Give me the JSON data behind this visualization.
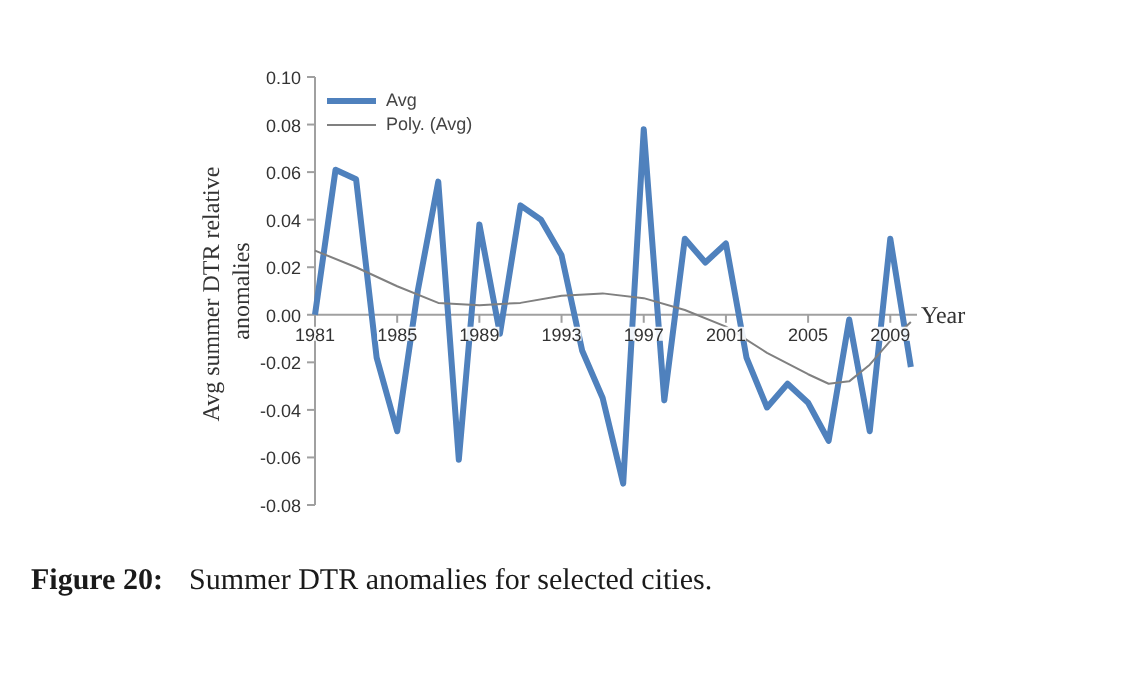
{
  "chart_data": {
    "type": "line",
    "xlabel": "Year",
    "ylabel": "Avg  summer DTR relative\nanomalies",
    "x": [
      1981,
      1982,
      1983,
      1984,
      1985,
      1986,
      1987,
      1988,
      1989,
      1990,
      1991,
      1992,
      1993,
      1994,
      1995,
      1996,
      1997,
      1998,
      1999,
      2000,
      2001,
      2002,
      2003,
      2004,
      2005,
      2006,
      2007,
      2008,
      2009,
      2010
    ],
    "series": [
      {
        "name": "Avg",
        "color": "#4f81bd",
        "values": [
          0.0,
          0.061,
          0.057,
          -0.018,
          -0.049,
          0.01,
          0.056,
          -0.061,
          0.038,
          -0.008,
          0.046,
          0.04,
          0.025,
          -0.015,
          -0.035,
          -0.071,
          0.078,
          -0.036,
          0.032,
          0.022,
          0.03,
          -0.018,
          -0.039,
          -0.029,
          -0.037,
          -0.053,
          -0.002,
          -0.049,
          0.032,
          -0.022
        ]
      },
      {
        "name": "Poly. (Avg)",
        "color": "#808080",
        "type": "line",
        "x": [
          1981,
          1983,
          1985,
          1987,
          1989,
          1991,
          1993,
          1995,
          1997,
          1999,
          2001,
          2003,
          2005,
          2006,
          2007,
          2008,
          2009,
          2010
        ],
        "values": [
          0.027,
          0.02,
          0.012,
          0.005,
          0.004,
          0.005,
          0.008,
          0.009,
          0.007,
          0.002,
          -0.005,
          -0.016,
          -0.025,
          -0.029,
          -0.028,
          -0.021,
          -0.011,
          -0.003
        ]
      }
    ],
    "xlim": [
      1981,
      2010.3
    ],
    "xticks": [
      1981,
      1985,
      1989,
      1993,
      1997,
      2001,
      2005,
      2009
    ],
    "ylim": [
      -0.08,
      0.1
    ],
    "yticks": [
      {
        "value": -0.08,
        "label": "-0.08"
      },
      {
        "value": -0.06,
        "label": "-0.06"
      },
      {
        "value": -0.04,
        "label": "-0.04"
      },
      {
        "value": -0.02,
        "label": "-0.02"
      },
      {
        "value": 0,
        "label": "0.00"
      },
      {
        "value": 0.02,
        "label": "0.02"
      },
      {
        "value": 0.04,
        "label": "0.04"
      },
      {
        "value": 0.06,
        "label": "0.06"
      },
      {
        "value": 0.08,
        "label": "0.08"
      },
      {
        "value": 0.1,
        "label": "0.10"
      }
    ],
    "legend": "top left",
    "grid": false,
    "marker": "none",
    "line_style": "solid",
    "annotations": [
      "Figure 20: Summer DTR anomalies for selected cities."
    ]
  }
}
